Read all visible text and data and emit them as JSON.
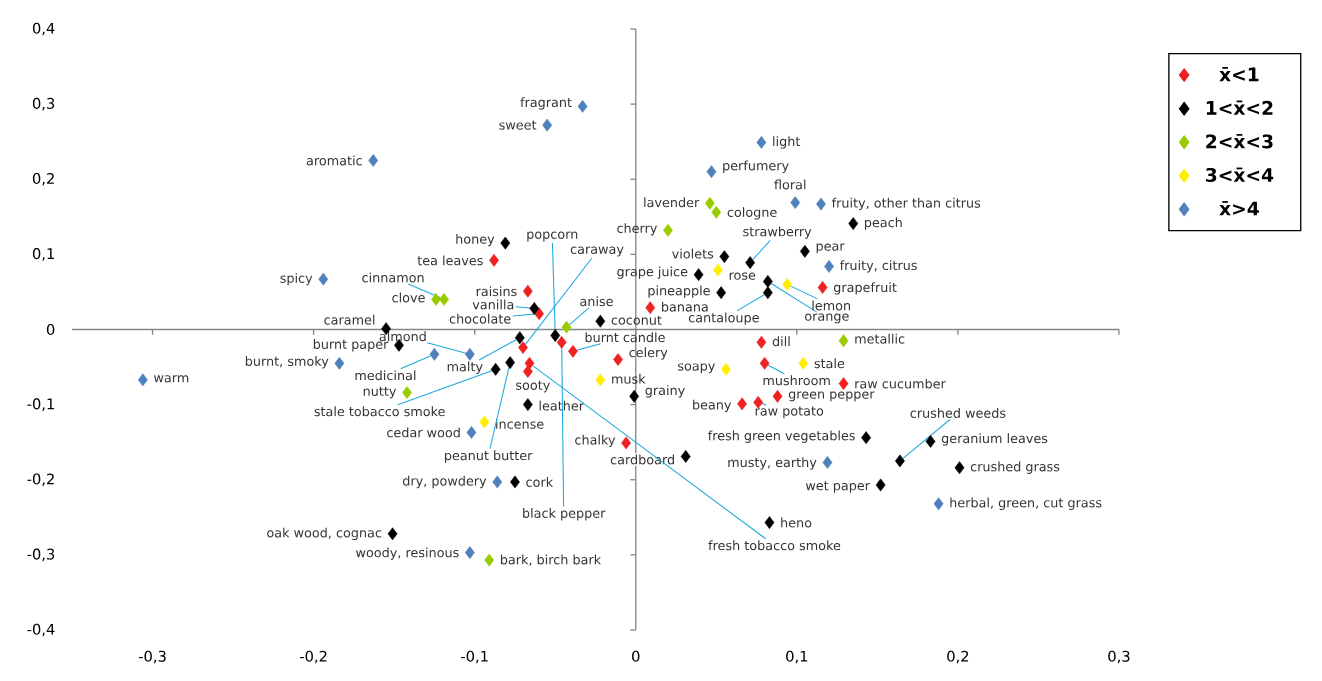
{
  "chart_data": {
    "type": "scatter",
    "marker": "diamond",
    "legend": "right",
    "xlim": [
      -0.35,
      0.3
    ],
    "ylim": [
      -0.4,
      0.4
    ],
    "xticks": [
      {
        "value": -0.3,
        "label": "-0,3"
      },
      {
        "value": -0.2,
        "label": "-0,2"
      },
      {
        "value": -0.1,
        "label": "-0,1"
      },
      0,
      {
        "value": 0.1,
        "label": "0,1"
      },
      {
        "value": 0.2,
        "label": "0,2"
      },
      {
        "value": 0.3,
        "label": "0,3"
      }
    ],
    "yticks": [
      {
        "value": -0.4,
        "label": "-0,4"
      },
      {
        "value": -0.3,
        "label": "-0,3"
      },
      {
        "value": -0.2,
        "label": "-0,2"
      },
      {
        "value": -0.1,
        "label": "-0,1"
      },
      0,
      {
        "value": 0.1,
        "label": "0,1"
      },
      {
        "value": 0.2,
        "label": "0,2"
      },
      {
        "value": 0.3,
        "label": "0,3"
      },
      {
        "value": 0.4,
        "label": "0,4"
      }
    ],
    "series": [
      {
        "name": "x̄<1",
        "color": "#ee2222",
        "x": [
          -0.088,
          -0.067,
          -0.06,
          -0.07,
          -0.046,
          -0.039,
          -0.066,
          -0.067,
          0.009,
          -0.011,
          -0.006,
          0.078,
          0.08,
          0.066,
          0.076,
          0.088,
          0.129,
          0.116
        ],
        "values": [
          0.092,
          0.051,
          0.021,
          -0.024,
          -0.017,
          -0.029,
          -0.045,
          -0.056,
          0.029,
          -0.04,
          -0.151,
          -0.017,
          -0.045,
          -0.099,
          -0.097,
          -0.089,
          -0.072,
          0.056
        ]
      },
      {
        "name": "1<x̄<2",
        "color": "#000000",
        "x": [
          -0.081,
          -0.05,
          -0.155,
          -0.063,
          -0.147,
          -0.072,
          -0.087,
          -0.078,
          -0.067,
          -0.075,
          -0.151,
          0.135,
          0.071,
          0.055,
          0.105,
          0.039,
          0.053,
          0.082,
          0.082,
          -0.022,
          -0.001,
          0.031,
          0.143,
          0.164,
          0.183,
          0.201,
          0.152,
          0.083
        ],
        "values": [
          0.115,
          -0.008,
          0.001,
          0.028,
          -0.021,
          -0.011,
          -0.053,
          -0.044,
          -0.1,
          -0.203,
          -0.272,
          0.141,
          0.089,
          0.097,
          0.104,
          0.073,
          0.049,
          0.064,
          0.049,
          0.011,
          -0.089,
          -0.169,
          -0.144,
          -0.175,
          -0.149,
          -0.184,
          -0.207,
          -0.257
        ]
      },
      {
        "name": "2<x̄<3",
        "color": "#99cc00",
        "x": [
          0.046,
          0.05,
          0.02,
          -0.119,
          -0.124,
          -0.043,
          -0.142,
          -0.091,
          0.129
        ],
        "values": [
          0.168,
          0.156,
          0.132,
          0.04,
          0.04,
          0.003,
          -0.084,
          -0.307,
          -0.015
        ]
      },
      {
        "name": "3<x̄<4",
        "color": "#ffee00",
        "x": [
          0.051,
          0.094,
          -0.022,
          -0.094,
          0.056,
          0.104
        ],
        "values": [
          0.079,
          0.06,
          -0.067,
          -0.123,
          -0.053,
          -0.045
        ]
      },
      {
        "name": "x̄>4",
        "color": "#4f81bd",
        "x": [
          -0.033,
          -0.055,
          -0.163,
          -0.194,
          0.078,
          0.047,
          0.099,
          0.115,
          0.12,
          -0.184,
          -0.306,
          -0.125,
          -0.103,
          -0.102,
          -0.086,
          -0.103,
          0.119,
          0.188
        ],
        "values": [
          0.297,
          0.272,
          0.225,
          0.067,
          0.249,
          0.21,
          0.169,
          0.167,
          0.084,
          -0.045,
          -0.067,
          -0.033,
          -0.033,
          -0.137,
          -0.203,
          -0.297,
          -0.177,
          -0.232
        ]
      }
    ],
    "annotations": [
      {
        "text": "fragrant",
        "x": -0.033,
        "y": 0.297
      },
      {
        "text": "sweet",
        "x": -0.055,
        "y": 0.272
      },
      {
        "text": "aromatic",
        "x": -0.163,
        "y": 0.225
      },
      {
        "text": "spicy",
        "x": -0.194,
        "y": 0.067
      },
      {
        "text": "light",
        "x": 0.078,
        "y": 0.249
      },
      {
        "text": "perfumery",
        "x": 0.047,
        "y": 0.21
      },
      {
        "text": "floral",
        "x": 0.099,
        "y": 0.169
      },
      {
        "text": "fruity, other than citrus",
        "x": 0.115,
        "y": 0.167
      },
      {
        "text": "fruity, citrus",
        "x": 0.12,
        "y": 0.084
      },
      {
        "text": "burnt, smoky",
        "x": -0.184,
        "y": -0.045
      },
      {
        "text": "warm",
        "x": -0.306,
        "y": -0.067
      },
      {
        "text": "medicinal",
        "x": -0.125,
        "y": -0.033
      },
      {
        "text": "almond",
        "x": -0.103,
        "y": -0.033
      },
      {
        "text": "cedar wood",
        "x": -0.102,
        "y": -0.137
      },
      {
        "text": "dry, powdery",
        "x": -0.086,
        "y": -0.203
      },
      {
        "text": "woody, resinous",
        "x": -0.103,
        "y": -0.297
      },
      {
        "text": "musty, earthy",
        "x": 0.119,
        "y": -0.177
      },
      {
        "text": "herbal, green, cut grass",
        "x": 0.188,
        "y": -0.232
      },
      {
        "text": "honey",
        "x": -0.081,
        "y": 0.115
      },
      {
        "text": "popcorn",
        "x": -0.05,
        "y": -0.008
      },
      {
        "text": "caramel",
        "x": -0.155,
        "y": 0.001
      },
      {
        "text": "vanilla",
        "x": -0.063,
        "y": 0.028
      },
      {
        "text": "burnt paper",
        "x": -0.147,
        "y": -0.021
      },
      {
        "text": "malty",
        "x": -0.072,
        "y": -0.011
      },
      {
        "text": "stale tobacco smoke",
        "x": -0.087,
        "y": -0.053
      },
      {
        "text": "peanut butter",
        "x": -0.078,
        "y": -0.044
      },
      {
        "text": "leather",
        "x": -0.067,
        "y": -0.1
      },
      {
        "text": "cork",
        "x": -0.075,
        "y": -0.203
      },
      {
        "text": "oak wood, cognac",
        "x": -0.151,
        "y": -0.272
      },
      {
        "text": "peach",
        "x": 0.135,
        "y": 0.141
      },
      {
        "text": "strawberry",
        "x": 0.071,
        "y": 0.089
      },
      {
        "text": "violets",
        "x": 0.055,
        "y": 0.097
      },
      {
        "text": "pear",
        "x": 0.105,
        "y": 0.104
      },
      {
        "text": "grape juice",
        "x": 0.039,
        "y": 0.073
      },
      {
        "text": "pineapple",
        "x": 0.053,
        "y": 0.049
      },
      {
        "text": "orange",
        "x": 0.082,
        "y": 0.064
      },
      {
        "text": "cantaloupe",
        "x": 0.082,
        "y": 0.049
      },
      {
        "text": "coconut",
        "x": -0.022,
        "y": 0.011
      },
      {
        "text": "grainy",
        "x": -0.001,
        "y": -0.089
      },
      {
        "text": "cardboard",
        "x": 0.031,
        "y": -0.169
      },
      {
        "text": "fresh green vegetables",
        "x": 0.143,
        "y": -0.144
      },
      {
        "text": "crushed weeds",
        "x": 0.164,
        "y": -0.175
      },
      {
        "text": "geranium leaves",
        "x": 0.183,
        "y": -0.149
      },
      {
        "text": "crushed grass",
        "x": 0.201,
        "y": -0.184
      },
      {
        "text": "wet paper",
        "x": 0.152,
        "y": -0.207
      },
      {
        "text": "heno",
        "x": 0.083,
        "y": -0.257
      },
      {
        "text": "lavender",
        "x": 0.046,
        "y": 0.168
      },
      {
        "text": "cologne",
        "x": 0.05,
        "y": 0.156
      },
      {
        "text": "cherry",
        "x": 0.02,
        "y": 0.132
      },
      {
        "text": "cinnamon",
        "x": -0.119,
        "y": 0.04
      },
      {
        "text": "clove",
        "x": -0.124,
        "y": 0.04
      },
      {
        "text": "anise",
        "x": -0.043,
        "y": 0.003
      },
      {
        "text": "nutty",
        "x": -0.142,
        "y": -0.084
      },
      {
        "text": "bark, birch bark",
        "x": -0.091,
        "y": -0.307
      },
      {
        "text": "metallic",
        "x": 0.129,
        "y": -0.015
      },
      {
        "text": "rose",
        "x": 0.051,
        "y": 0.079
      },
      {
        "text": "lemon",
        "x": 0.094,
        "y": 0.06
      },
      {
        "text": "musk",
        "x": -0.022,
        "y": -0.067
      },
      {
        "text": "incense",
        "x": -0.094,
        "y": -0.123
      },
      {
        "text": "soapy",
        "x": 0.056,
        "y": -0.053
      },
      {
        "text": "stale",
        "x": 0.104,
        "y": -0.045
      },
      {
        "text": "tea leaves",
        "x": -0.088,
        "y": 0.092
      },
      {
        "text": "raisins",
        "x": -0.067,
        "y": 0.051
      },
      {
        "text": "chocolate",
        "x": -0.06,
        "y": 0.021
      },
      {
        "text": "caraway",
        "x": -0.07,
        "y": -0.024
      },
      {
        "text": "black pepper",
        "x": -0.046,
        "y": -0.017
      },
      {
        "text": "burnt candle",
        "x": -0.039,
        "y": -0.029
      },
      {
        "text": "fresh tobacco smoke",
        "x": -0.066,
        "y": -0.045
      },
      {
        "text": "sooty",
        "x": -0.067,
        "y": -0.056
      },
      {
        "text": "banana",
        "x": 0.009,
        "y": 0.029
      },
      {
        "text": "celery",
        "x": -0.011,
        "y": -0.04
      },
      {
        "text": "chalky",
        "x": -0.006,
        "y": -0.151
      },
      {
        "text": "dill",
        "x": 0.078,
        "y": -0.017
      },
      {
        "text": "mushroom",
        "x": 0.08,
        "y": -0.045
      },
      {
        "text": "beany",
        "x": 0.066,
        "y": -0.099
      },
      {
        "text": "raw potato",
        "x": 0.076,
        "y": -0.097
      },
      {
        "text": "green pepper",
        "x": 0.088,
        "y": -0.089
      },
      {
        "text": "raw cucumber",
        "x": 0.129,
        "y": -0.072
      },
      {
        "text": "grapefruit",
        "x": 0.116,
        "y": 0.056
      }
    ]
  }
}
